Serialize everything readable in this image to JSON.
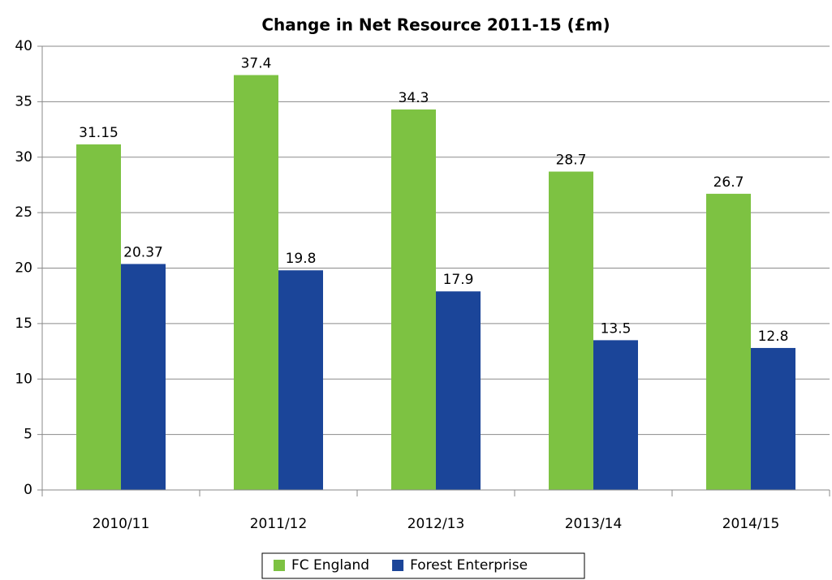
{
  "chart_data": {
    "type": "bar",
    "title": "Change in Net Resource 2011-15 (£m)",
    "categories": [
      "2010/11",
      "2011/12",
      "2012/13",
      "2013/14",
      "2014/15"
    ],
    "series": [
      {
        "name": "FC England",
        "color": "#7dc242",
        "values": [
          31.15,
          37.4,
          34.3,
          28.7,
          26.7
        ]
      },
      {
        "name": "Forest Enterprise",
        "color": "#1b4599",
        "values": [
          20.37,
          19.8,
          17.9,
          13.5,
          12.8
        ]
      }
    ],
    "ylim": [
      0,
      40
    ],
    "yticks": [
      0,
      5,
      10,
      15,
      20,
      25,
      30,
      35,
      40
    ],
    "grid": true,
    "legend": "bottom"
  }
}
